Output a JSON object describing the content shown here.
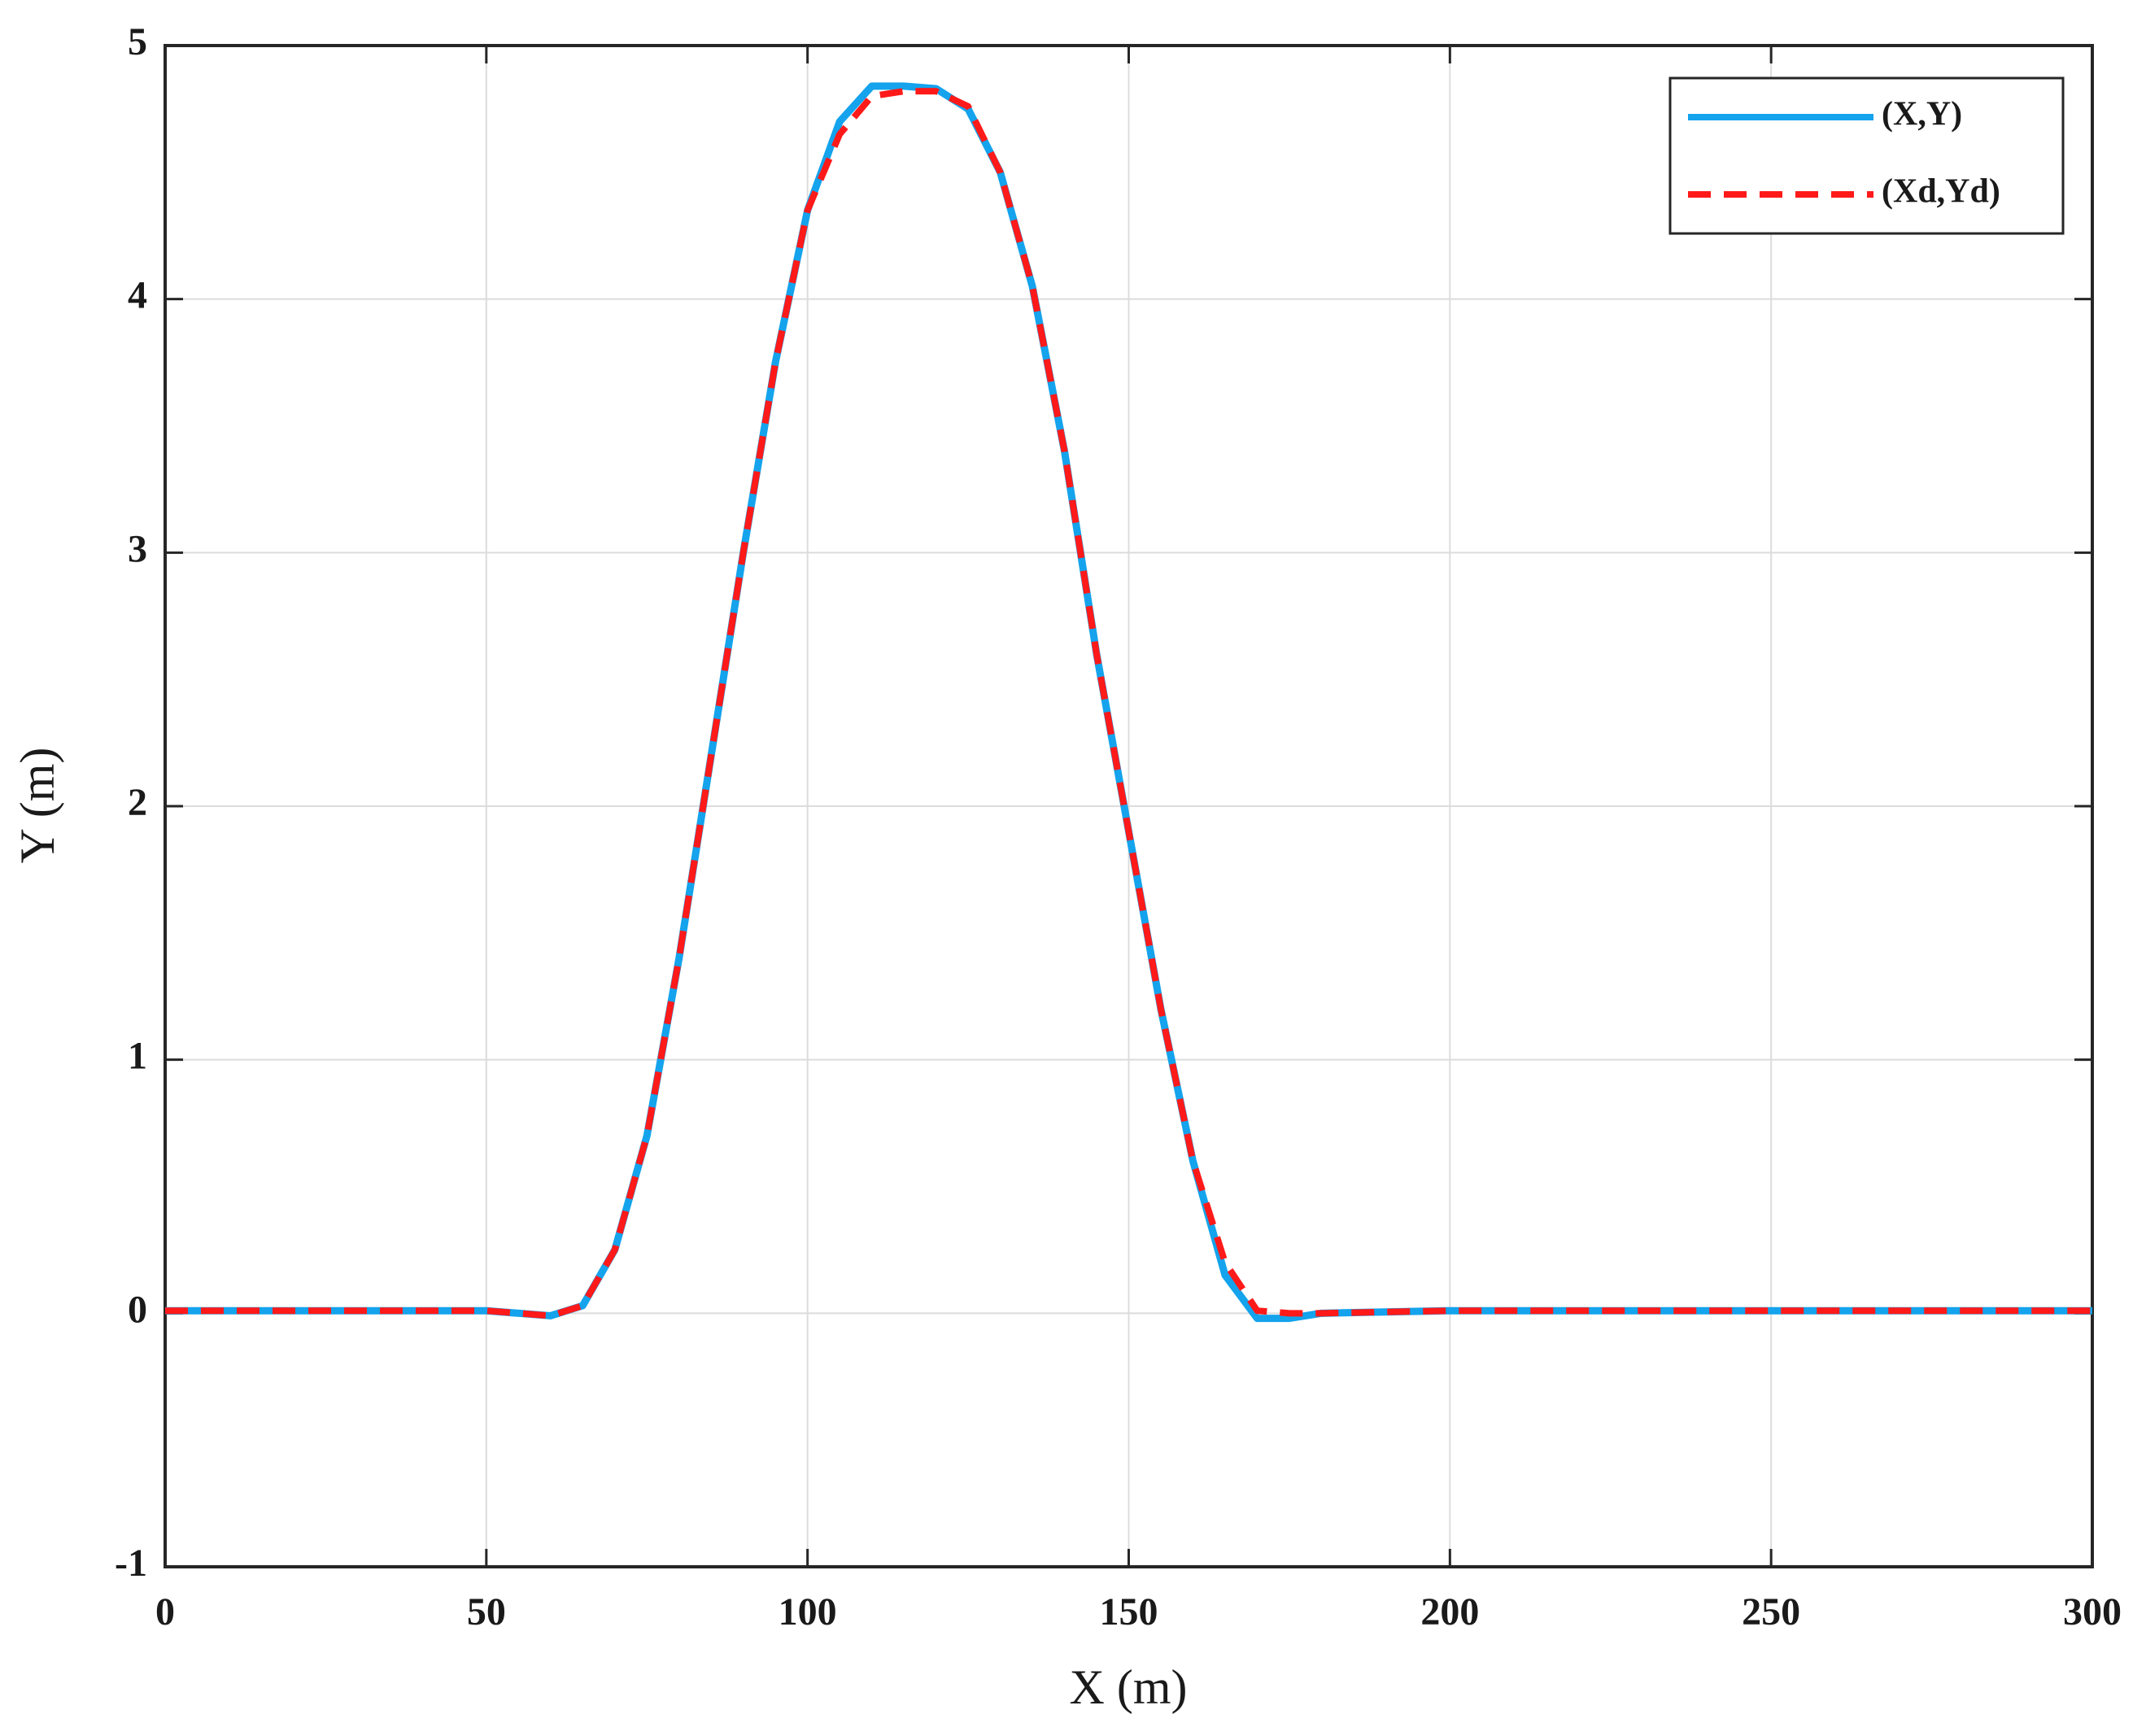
{
  "chart_data": {
    "type": "line",
    "x_label": "X (m)",
    "y_label": "Y (m)",
    "x": [
      0,
      25,
      50,
      60,
      65,
      70,
      75,
      80,
      85,
      90,
      95,
      100,
      105,
      110,
      115,
      120,
      125,
      130,
      135,
      140,
      145,
      150,
      155,
      160,
      165,
      170,
      175,
      180,
      200,
      250,
      300
    ],
    "series": [
      {
        "name": "(X,Y)",
        "color": "#14a3ec",
        "style": "solid",
        "values": [
          0.01,
          0.01,
          0.01,
          -0.01,
          0.03,
          0.25,
          0.7,
          1.4,
          2.2,
          3.0,
          3.75,
          4.35,
          4.7,
          4.84,
          4.84,
          4.83,
          4.75,
          4.5,
          4.05,
          3.4,
          2.6,
          1.9,
          1.2,
          0.6,
          0.15,
          -0.02,
          -0.02,
          0.0,
          0.01,
          0.01,
          0.01
        ]
      },
      {
        "name": "(Xd,Yd)",
        "color": "#ff1a1a",
        "style": "dashed",
        "values": [
          0.01,
          0.01,
          0.01,
          -0.01,
          0.03,
          0.25,
          0.7,
          1.4,
          2.2,
          3.0,
          3.75,
          4.35,
          4.65,
          4.8,
          4.82,
          4.82,
          4.76,
          4.5,
          4.05,
          3.4,
          2.6,
          1.9,
          1.2,
          0.6,
          0.2,
          0.01,
          0.0,
          0.0,
          0.01,
          0.01,
          0.01
        ]
      }
    ],
    "xlim": [
      0,
      300
    ],
    "xticks": [
      0,
      50,
      100,
      150,
      200,
      250,
      300
    ],
    "ylim": [
      -1,
      5
    ],
    "yticks": [
      -1,
      0,
      1,
      2,
      3,
      4,
      5
    ],
    "grid": true,
    "legend": "northeast"
  }
}
